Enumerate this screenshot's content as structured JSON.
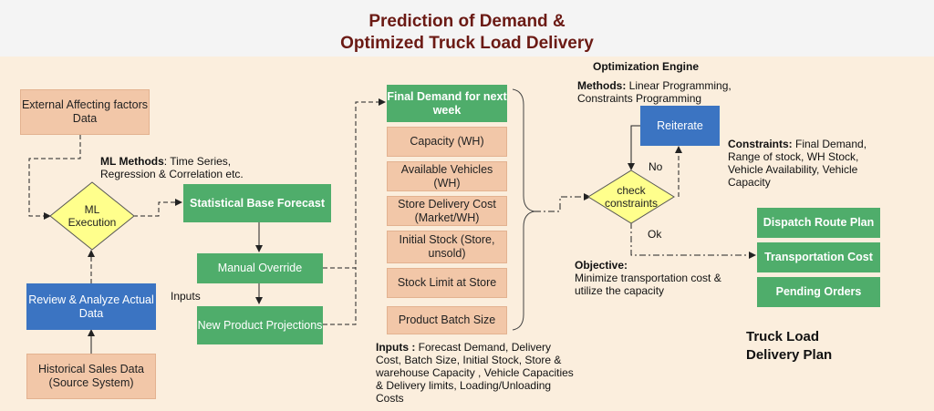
{
  "title_line1": "Prediction of Demand &",
  "title_line2": "Optimized Truck Load Delivery",
  "nodes": {
    "external": "External Affecting factors Data",
    "ml_execution": "ML Execution",
    "review": "Review & Analyze Actual Data",
    "historical": "Historical Sales Data (Source System)",
    "statistical": "Statistical Base Forecast",
    "manual": "Manual Override",
    "new_product": "New Product Projections",
    "final_demand": "Final Demand for next week",
    "capacity": "Capacity (WH)",
    "vehicles": "Available Vehicles (WH)",
    "delivery_cost": "Store Delivery Cost (Market/WH)",
    "initial_stock": "Initial Stock (Store, unsold)",
    "stock_limit": "Stock Limit at Store",
    "batch": "Product Batch Size",
    "reiterate": "Reiterate",
    "check": "check constraints",
    "dispatch": "Dispatch Route Plan",
    "transport": "Transportation Cost",
    "pending": "Pending Orders"
  },
  "labels": {
    "ml_methods_title": "ML Methods",
    "ml_methods_text": ": Time Series, Regression & Correlation etc.",
    "inputs": "Inputs",
    "inputs_title": "Inputs :",
    "inputs_text": " Forecast Demand, Delivery Cost, Batch Size, Initial Stock, Store & warehouse Capacity , Vehicle Capacities & Delivery limits, Loading/Unloading Costs",
    "engine": "Optimization Engine",
    "methods_title": "Methods:",
    "methods_text": " Linear Programming, Constraints Programming",
    "constraints_title": "Constraints:",
    "constraints_text": " Final Demand, Range of stock,  WH Stock, Vehicle Availability, Vehicle Capacity",
    "no": "No",
    "ok": "Ok",
    "objective_title": "Objective:",
    "objective_text": "Minimize transportation cost & utilize the capacity",
    "truck_plan": "Truck Load Delivery Plan"
  },
  "colors": {
    "peach": "#f2c7a8",
    "green": "#4fad6b",
    "blue": "#3b74c2",
    "yellow": "#ffff8c",
    "title": "#6b1a14",
    "panel": "#fbeedd"
  }
}
